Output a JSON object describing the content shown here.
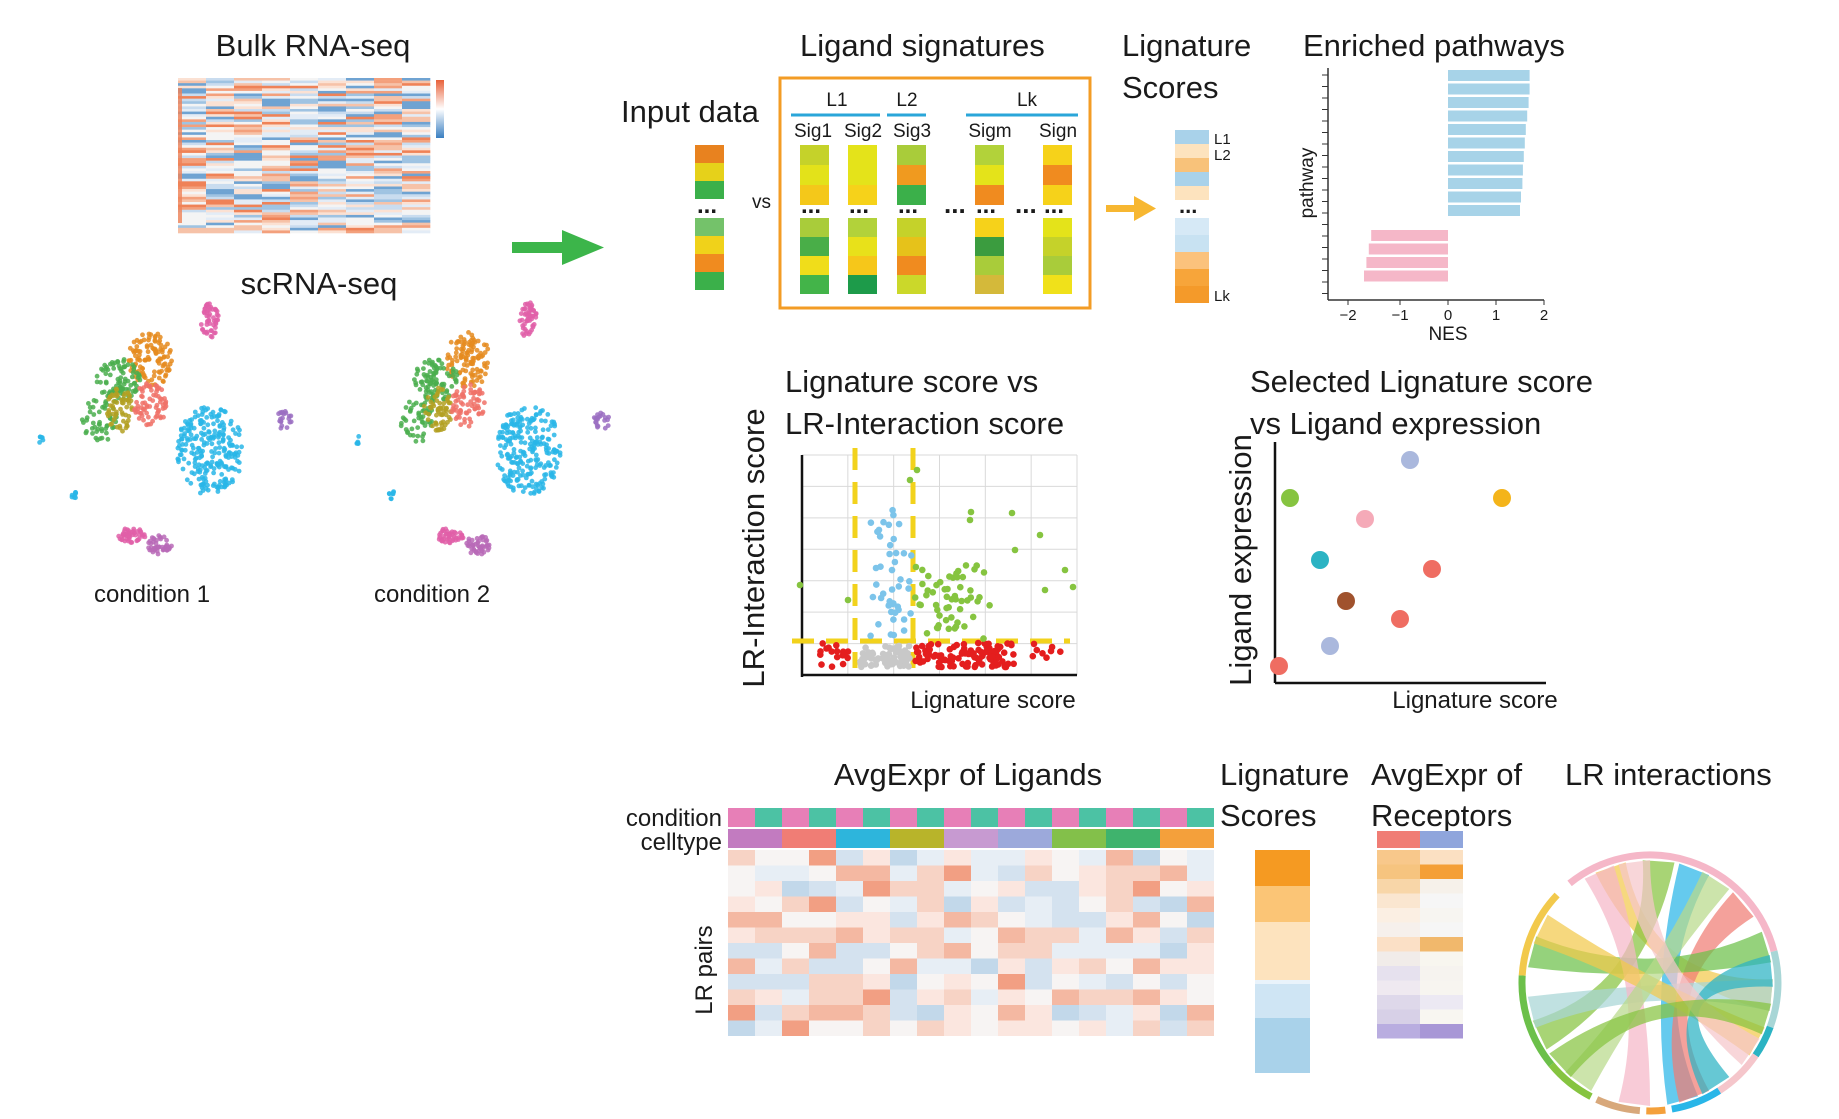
{
  "inputs": {
    "bulk_title": "Bulk RNA-seq",
    "sc_title": "scRNA-seq",
    "condition1": "condition 1",
    "condition2": "condition 2"
  },
  "signatures": {
    "input_label": "Input data",
    "vs_label": "vs",
    "title": "Ligand signatures",
    "ligands": [
      "L1",
      "L2",
      "Lk"
    ],
    "signature_labels": [
      "Sig1",
      "Sig2",
      "Sig3",
      "Sigm",
      "Sign"
    ],
    "ellipsis": "..."
  },
  "lignature_scores_top": {
    "title_line1": "Lignature",
    "title_line2": "Scores",
    "labels": [
      "L1",
      "L2",
      "Lk"
    ]
  },
  "pathways": {
    "title": "Enriched pathways",
    "ylabel": "pathway",
    "xlabel": "NES",
    "x_ticks": [
      "−2",
      "−1",
      "0",
      "1",
      "2"
    ],
    "positive_nes": [
      1.7,
      1.7,
      1.68,
      1.65,
      1.62,
      1.6,
      1.58,
      1.56,
      1.55,
      1.52,
      1.5
    ],
    "negative_nes": [
      -1.6,
      -1.65,
      -1.7,
      -1.75
    ],
    "colors": {
      "positive": "#a7d3e8",
      "negative": "#f5b7c8"
    }
  },
  "scatter_lr": {
    "title_line1": "Lignature score vs",
    "title_line2": "LR-Interaction score",
    "xlabel": "Lignature score",
    "ylabel": "LR-Interaction score",
    "threshold_color": "#f2d21c"
  },
  "scatter_expr": {
    "title_line1": "Selected Lignature score",
    "title_line2": "vs Ligand expression",
    "xlabel": "Lignature score",
    "ylabel": "Ligand expression"
  },
  "heatmap": {
    "title": "AvgExpr of Ligands",
    "row_condition": "condition",
    "row_celltype": "celltype",
    "row_label": "LR pairs"
  },
  "bottom_scores": {
    "title_line1": "Lignature",
    "title_line2": "Scores"
  },
  "receptors": {
    "title_line1": "AvgExpr of",
    "title_line2": "Receptors"
  },
  "chord": {
    "title": "LR interactions"
  },
  "colors": {
    "arrow_green": "#3cb54a",
    "arrow_yellow": "#f7b731",
    "box_orange": "#f39c25",
    "ligand_line": "#2aa6d9"
  }
}
